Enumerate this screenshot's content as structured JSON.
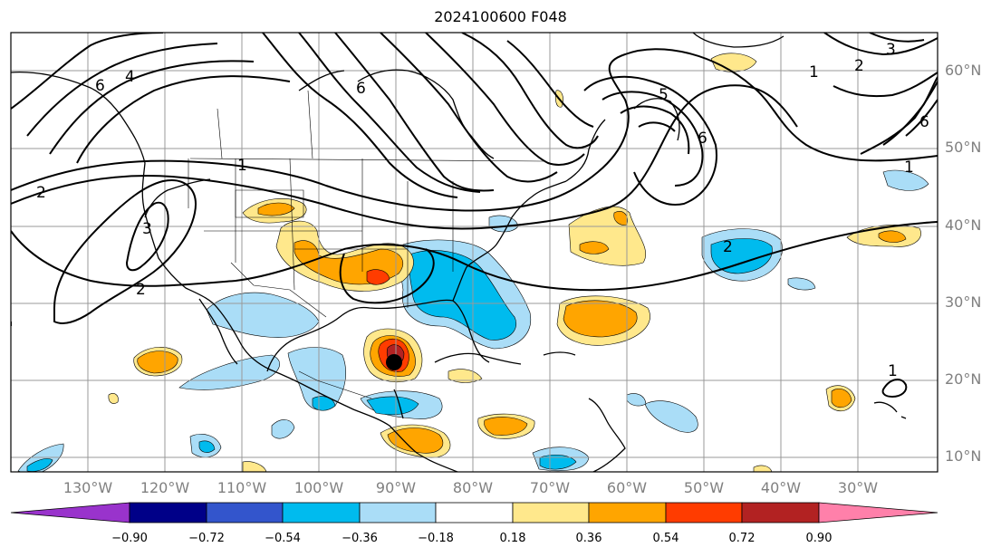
{
  "title": "2024100600 F048",
  "lat_labels": [
    "60°N",
    "50°N",
    "40°N",
    "30°N",
    "20°N",
    "10°N"
  ],
  "lon_labels": [
    "130°W",
    "120°W",
    "110°W",
    "100°W",
    "90°W",
    "80°W",
    "70°W",
    "60°W",
    "50°W",
    "40°W",
    "30°W"
  ],
  "colorbar": {
    "labels": [
      "−0.90",
      "−0.72",
      "−0.54",
      "−0.36",
      "−0.18",
      "0.18",
      "0.36",
      "0.54",
      "0.72",
      "0.90"
    ],
    "colors": [
      "#9933cc",
      "#000088",
      "#3355cc",
      "#00bbee",
      "#aaddf7",
      "#ffffff",
      "#ffe88c",
      "#ffa500",
      "#ff3c00",
      "#b22222",
      "#ff80aa"
    ]
  },
  "contour_labels": [
    "1",
    "2",
    "3",
    "4",
    "5",
    "6"
  ],
  "shading_colors": {
    "light_blue": "#aaddf7",
    "blue": "#00bbee",
    "dark_blue": "#3355cc",
    "light_orange": "#ffe88c",
    "orange": "#ffa500",
    "red": "#ff3c00",
    "dark_red": "#b22222"
  },
  "marker": {
    "label": "storm-center",
    "lon": -89.5,
    "lat": 22.3
  }
}
